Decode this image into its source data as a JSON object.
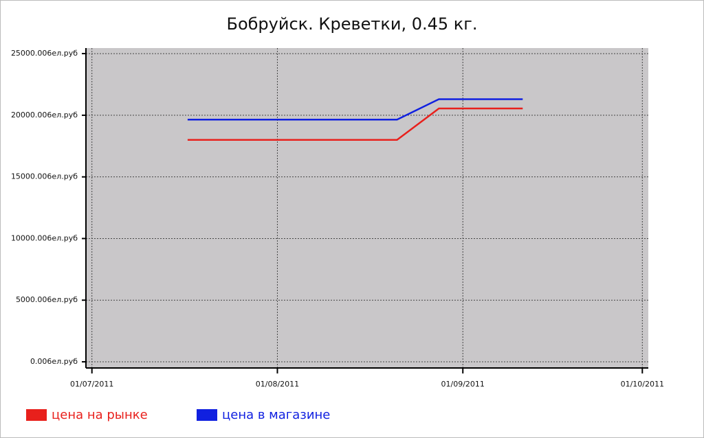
{
  "chart_data": {
    "type": "line",
    "title": "Бобруйск. Креветки, 0.45 кг.",
    "x": [
      "2011-07-17",
      "2011-07-24",
      "2011-07-31",
      "2011-08-07",
      "2011-08-14",
      "2011-08-21",
      "2011-08-28",
      "2011-09-04",
      "2011-09-11"
    ],
    "series": [
      {
        "name": "цена на рынке",
        "color": "#e8201c",
        "values": [
          18000,
          18000,
          18000,
          18000,
          18000,
          18000,
          20550,
          20550,
          20550
        ]
      },
      {
        "name": "цена в магазине",
        "color": "#1020e0",
        "values": [
          19650,
          19650,
          19650,
          19650,
          19650,
          19650,
          21300,
          21300,
          21300
        ]
      }
    ],
    "xlim": [
      "2011-06-30",
      "2011-10-02"
    ],
    "xticks": [
      {
        "value": "2011-07-01",
        "label": "01/07/2011"
      },
      {
        "value": "2011-08-01",
        "label": "01/08/2011"
      },
      {
        "value": "2011-09-01",
        "label": "01/09/2011"
      },
      {
        "value": "2011-10-01",
        "label": "01/10/2011"
      }
    ],
    "ylim": [
      -500,
      25450
    ],
    "yticks": [
      {
        "value": 0,
        "label": "0.006ел.руб"
      },
      {
        "value": 5000,
        "label": "5000.006ел.руб"
      },
      {
        "value": 10000,
        "label": "10000.006ел.руб"
      },
      {
        "value": 15000,
        "label": "15000.006ел.руб"
      },
      {
        "value": 20000,
        "label": "20000.006ел.руб"
      },
      {
        "value": 25000,
        "label": "25000.006ел.руб"
      }
    ],
    "grid": true,
    "legend": "bottom-left"
  }
}
